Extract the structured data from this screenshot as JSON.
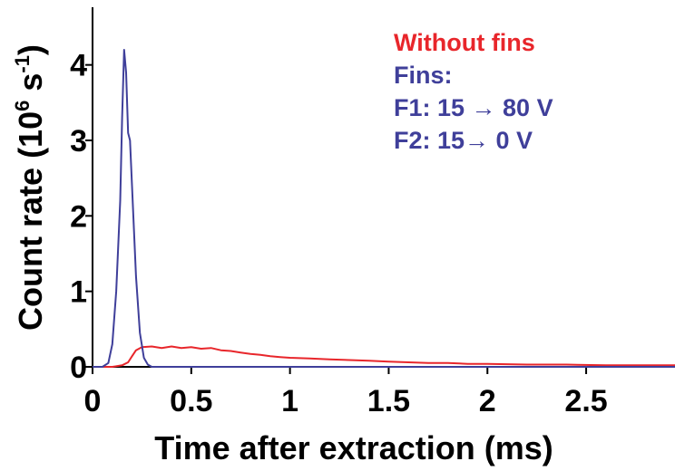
{
  "chart_data": {
    "type": "line",
    "title": "",
    "xlabel": "Time after extraction (ms)",
    "ylabel_main": "Count rate (10",
    "ylabel_exp1": "6",
    "ylabel_mid": " s",
    "ylabel_exp2": "-1",
    "ylabel_end": ")",
    "xlim": [
      0,
      2.95
    ],
    "ylim": [
      0,
      4.5
    ],
    "x_ticks": [
      0,
      0.5,
      1,
      1.5,
      2,
      2.5
    ],
    "x_tick_labels": [
      "0",
      "0.5",
      "1",
      "1.5",
      "2",
      "2.5"
    ],
    "y_ticks": [
      0,
      1,
      2,
      3,
      4
    ],
    "y_tick_labels": [
      "0",
      "1",
      "2",
      "3",
      "4"
    ],
    "grid": false,
    "legend_position": "top-right",
    "series": [
      {
        "name": "Without fins",
        "color": "#e8262b",
        "x": [
          0.0,
          0.1,
          0.15,
          0.18,
          0.2,
          0.22,
          0.25,
          0.3,
          0.35,
          0.4,
          0.45,
          0.5,
          0.55,
          0.6,
          0.65,
          0.7,
          0.75,
          0.8,
          0.85,
          0.9,
          0.95,
          1.0,
          1.1,
          1.2,
          1.3,
          1.4,
          1.5,
          1.6,
          1.7,
          1.8,
          1.9,
          2.0,
          2.2,
          2.4,
          2.6,
          2.8,
          2.95
        ],
        "y": [
          0.0,
          0.0,
          0.02,
          0.06,
          0.14,
          0.22,
          0.26,
          0.27,
          0.25,
          0.27,
          0.25,
          0.26,
          0.24,
          0.25,
          0.22,
          0.21,
          0.19,
          0.17,
          0.16,
          0.14,
          0.13,
          0.12,
          0.11,
          0.1,
          0.09,
          0.08,
          0.07,
          0.06,
          0.05,
          0.05,
          0.04,
          0.04,
          0.03,
          0.03,
          0.02,
          0.02,
          0.02
        ]
      },
      {
        "name": "Fins:",
        "color": "#3f3f9a",
        "x": [
          0.0,
          0.05,
          0.08,
          0.1,
          0.12,
          0.14,
          0.15,
          0.16,
          0.17,
          0.18,
          0.19,
          0.2,
          0.22,
          0.24,
          0.26,
          0.28,
          0.3,
          0.35,
          0.5,
          1.0,
          2.0,
          2.95
        ],
        "y": [
          0.0,
          0.0,
          0.05,
          0.3,
          1.0,
          2.2,
          3.3,
          4.2,
          3.9,
          3.1,
          3.0,
          2.4,
          1.2,
          0.45,
          0.12,
          0.03,
          0.0,
          0.0,
          0.0,
          0.0,
          0.0,
          0.0
        ]
      }
    ],
    "legend_lines": [
      {
        "text": "Without fins",
        "color": "#e8262b"
      },
      {
        "text": "Fins:",
        "color": "#3f3f9a"
      },
      {
        "text": "F1: 15 → 80 V",
        "color": "#3f3f9a"
      },
      {
        "text": "F2: 15→ 0 V",
        "color": "#3f3f9a"
      }
    ]
  }
}
